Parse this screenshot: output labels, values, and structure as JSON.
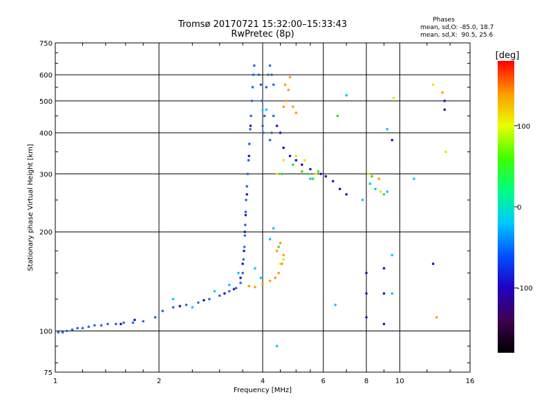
{
  "chart_data": {
    "type": "scatter",
    "title": "Tromsø 20170721 15:32:00–15:33:43",
    "subtitle": "RwPretec (8p)",
    "stats": {
      "heading": "Phases",
      "line1": "mean, sd,O: -85.0, 18.7",
      "line2": "mean, sd,X:  90.5, 25.6"
    },
    "xlabel": "Frequency [MHz]",
    "ylabel": "Stationary phase Virtual Height [km]",
    "x_scale": "log",
    "y_scale": "log",
    "xlim": [
      1,
      16
    ],
    "ylim": [
      75,
      750
    ],
    "x_ticks": [
      1,
      2,
      4,
      6,
      8,
      10,
      16
    ],
    "x_tick_labels": [
      "1",
      "2",
      "4",
      "6",
      "8",
      "10",
      "16"
    ],
    "y_ticks": [
      75,
      100,
      200,
      300,
      400,
      500,
      600,
      750
    ],
    "y_tick_labels": [
      "75",
      "100",
      "200",
      "300",
      "400",
      "500",
      "600",
      "750"
    ],
    "grid": true,
    "colorbar": {
      "label": "[deg]",
      "range": [
        -180,
        180
      ],
      "ticks": [
        100,
        0,
        -100
      ],
      "tick_labels": [
        "100",
        "0",
        "-100"
      ],
      "colors": [
        "#000000",
        "#400050",
        "#2000c0",
        "#0050ff",
        "#00c8ff",
        "#00ff80",
        "#40ff00",
        "#e8ff00",
        "#ff9a00",
        "#ff0000"
      ]
    },
    "series": [
      {
        "phase": -95,
        "color": "#1f6be0",
        "points": [
          [
            1.02,
            99
          ],
          [
            1.05,
            99
          ],
          [
            1.08,
            100
          ],
          [
            1.12,
            101
          ],
          [
            1.16,
            102
          ],
          [
            1.2,
            102
          ],
          [
            1.25,
            103
          ],
          [
            1.3,
            104
          ],
          [
            1.36,
            104
          ],
          [
            1.42,
            105
          ],
          [
            1.5,
            105
          ],
          [
            1.58,
            106
          ],
          [
            1.68,
            106
          ],
          [
            1.8,
            107
          ],
          [
            1.95,
            110
          ],
          [
            2.05,
            115
          ],
          [
            2.2,
            118
          ],
          [
            2.4,
            120
          ],
          [
            2.6,
            122
          ],
          [
            2.8,
            125
          ],
          [
            3.0,
            128
          ],
          [
            3.2,
            132
          ],
          [
            3.35,
            135
          ],
          [
            3.45,
            140
          ],
          [
            3.5,
            150
          ],
          [
            3.52,
            165
          ],
          [
            3.54,
            180
          ],
          [
            3.55,
            195
          ],
          [
            3.56,
            210
          ],
          [
            3.57,
            230
          ],
          [
            3.58,
            250
          ],
          [
            3.6,
            275
          ],
          [
            3.62,
            300
          ],
          [
            3.64,
            330
          ],
          [
            3.66,
            370
          ],
          [
            3.68,
            410
          ],
          [
            3.7,
            450
          ],
          [
            3.72,
            500
          ],
          [
            3.74,
            550
          ],
          [
            3.76,
            600
          ],
          [
            3.78,
            640
          ],
          [
            3.9,
            600
          ],
          [
            3.95,
            560
          ],
          [
            3.98,
            500
          ],
          [
            4.0,
            420
          ],
          [
            4.02,
            400
          ],
          [
            4.05,
            450
          ],
          [
            4.1,
            550
          ],
          [
            4.15,
            600
          ],
          [
            4.2,
            640
          ],
          [
            4.25,
            600
          ],
          [
            4.3,
            560
          ],
          [
            4.3,
            450
          ],
          [
            4.25,
            400
          ],
          [
            4.2,
            380
          ]
        ]
      },
      {
        "phase": -120,
        "color": "#2a10b8",
        "points": [
          [
            1.55,
            105
          ],
          [
            1.7,
            108
          ],
          [
            2.3,
            119
          ],
          [
            2.7,
            124
          ],
          [
            3.1,
            130
          ],
          [
            3.3,
            134
          ],
          [
            3.45,
            145
          ],
          [
            3.5,
            160
          ],
          [
            3.53,
            175
          ],
          [
            3.55,
            200
          ],
          [
            3.57,
            225
          ],
          [
            3.6,
            260
          ],
          [
            3.65,
            340
          ],
          [
            3.69,
            420
          ],
          [
            4.4,
            420
          ],
          [
            4.5,
            400
          ],
          [
            4.6,
            360
          ],
          [
            4.8,
            340
          ],
          [
            5.0,
            330
          ],
          [
            5.2,
            320
          ],
          [
            5.5,
            310
          ],
          [
            5.9,
            300
          ],
          [
            6.1,
            295
          ],
          [
            6.4,
            285
          ],
          [
            6.7,
            270
          ],
          [
            7.0,
            260
          ],
          [
            8.0,
            150
          ],
          [
            8.0,
            130
          ],
          [
            8.0,
            110
          ],
          [
            9.0,
            155
          ],
          [
            9.0,
            130
          ],
          [
            9.0,
            105
          ],
          [
            9.5,
            380
          ],
          [
            13.5,
            500
          ],
          [
            13.5,
            470
          ],
          [
            12.5,
            160
          ]
        ]
      },
      {
        "phase": -70,
        "color": "#00c8ff",
        "points": [
          [
            2.2,
            125
          ],
          [
            2.5,
            118
          ],
          [
            2.9,
            132
          ],
          [
            3.2,
            138
          ],
          [
            3.4,
            150
          ],
          [
            3.8,
            155
          ],
          [
            3.95,
            145
          ],
          [
            4.0,
            470
          ],
          [
            4.1,
            470
          ],
          [
            4.2,
            190
          ],
          [
            4.3,
            205
          ],
          [
            5.5,
            290
          ],
          [
            6.5,
            120
          ],
          [
            7.0,
            520
          ],
          [
            7.8,
            250
          ],
          [
            8.2,
            280
          ],
          [
            8.5,
            270
          ],
          [
            9.2,
            265
          ],
          [
            9.5,
            170
          ],
          [
            9.5,
            130
          ],
          [
            9.2,
            410
          ],
          [
            11.0,
            290
          ],
          [
            4.4,
            90
          ]
        ]
      },
      {
        "phase": 30,
        "color": "#30e020",
        "points": [
          [
            4.45,
            180
          ],
          [
            4.55,
            300
          ],
          [
            4.9,
            320
          ],
          [
            5.2,
            305
          ],
          [
            5.4,
            300
          ],
          [
            5.6,
            290
          ],
          [
            5.8,
            305
          ],
          [
            6.6,
            450
          ],
          [
            8.3,
            295
          ],
          [
            9.0,
            260
          ]
        ]
      },
      {
        "phase": 95,
        "color": "#e8e800",
        "points": [
          [
            4.4,
            300
          ],
          [
            4.6,
            330
          ],
          [
            5.0,
            340
          ],
          [
            5.3,
            330
          ],
          [
            5.7,
            300
          ],
          [
            4.5,
            160
          ],
          [
            4.6,
            165
          ],
          [
            8.1,
            300
          ],
          [
            8.8,
            265
          ],
          [
            9.6,
            510
          ],
          [
            12.5,
            560
          ],
          [
            13.6,
            350
          ]
        ]
      },
      {
        "phase": 140,
        "color": "#ff9a00",
        "points": [
          [
            3.65,
            137
          ],
          [
            3.8,
            136
          ],
          [
            4.0,
            139
          ],
          [
            4.2,
            142
          ],
          [
            4.35,
            145
          ],
          [
            4.45,
            150
          ],
          [
            4.55,
            160
          ],
          [
            4.6,
            170
          ],
          [
            4.5,
            185
          ],
          [
            4.4,
            175
          ],
          [
            4.6,
            480
          ],
          [
            4.7,
            500
          ],
          [
            4.75,
            540
          ],
          [
            4.9,
            480
          ],
          [
            5.0,
            460
          ],
          [
            4.65,
            560
          ],
          [
            4.8,
            590
          ],
          [
            8.7,
            290
          ],
          [
            12.8,
            110
          ],
          [
            13.3,
            530
          ]
        ]
      }
    ]
  }
}
